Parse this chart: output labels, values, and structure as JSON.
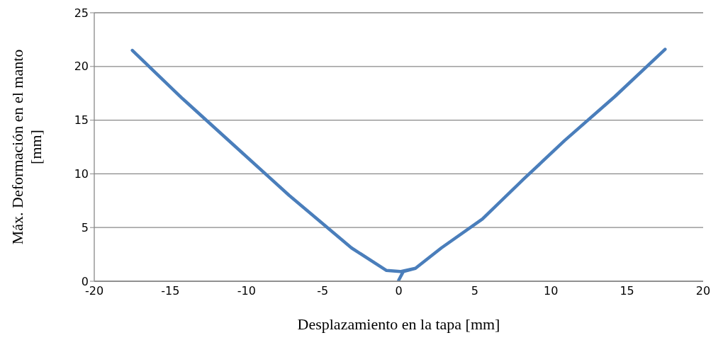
{
  "chart_data": {
    "type": "line",
    "xlabel": "Desplazamiento en la tapa [mm]",
    "ylabel": "Máx. Deformación en el manto [mm]",
    "series": [
      {
        "color": "#4a7ebb",
        "x": [
          0,
          0.3,
          1.1,
          2.8,
          5.5,
          8.2,
          10.9,
          14.2,
          17.5,
          14.2,
          10.9,
          8.2,
          5.5,
          2.8,
          1.1,
          0.1,
          -0.8,
          -3.1,
          -7.2,
          -10.7,
          -14.2,
          -17.5,
          -14.2,
          -10.7,
          -7.2,
          -3.1,
          -0.8,
          0.1
        ],
        "values": [
          0.1,
          0.9,
          1.2,
          3.1,
          5.8,
          9.5,
          13.1,
          17.2,
          21.6,
          17.2,
          13.1,
          9.5,
          5.8,
          3.1,
          1.2,
          0.9,
          1.0,
          3.1,
          8.0,
          12.5,
          17.0,
          21.5,
          17.0,
          12.5,
          8.0,
          3.1,
          1.0,
          0.9
        ]
      }
    ],
    "xlim": [
      -20,
      20
    ],
    "xticks": [
      -20,
      -15,
      -10,
      -5,
      0,
      5,
      10,
      15,
      20
    ],
    "ylim": [
      0,
      25
    ],
    "yticks": [
      0,
      5,
      10,
      15,
      20,
      25
    ],
    "grid": "y",
    "marker": "none",
    "line_style": "solid"
  }
}
